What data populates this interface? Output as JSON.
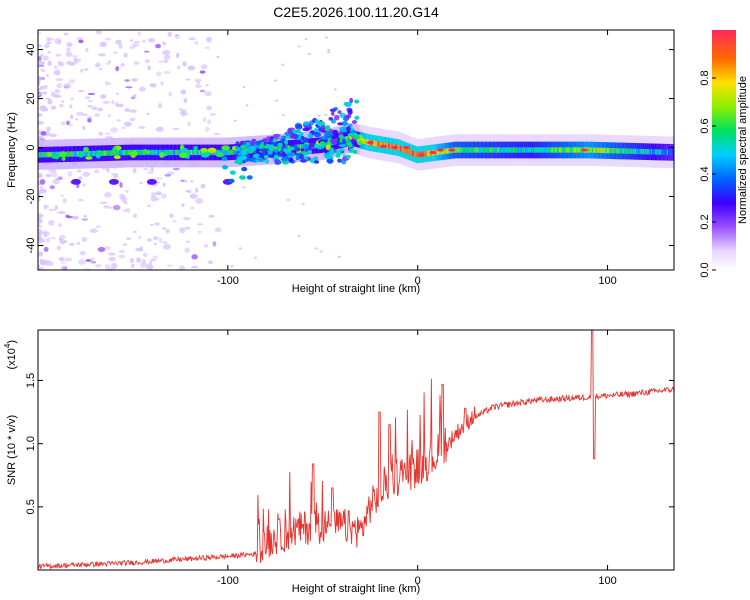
{
  "title": "C2E5.2026.100.11.20.G14",
  "colors": {
    "snr_line": "#e8332e",
    "spectrogram_background": "#ffffff"
  },
  "chart_data": [
    {
      "type": "heatmap",
      "xlabel": "Height of straight line (km)",
      "ylabel": "Frequency (Hz)",
      "xlim": [
        -200,
        135
      ],
      "ylim": [
        -50,
        48
      ],
      "xticks": [
        -100,
        0,
        100
      ],
      "xtick_labels": [
        "-100",
        "0",
        "100"
      ],
      "yticks": [
        40,
        20,
        0,
        -20,
        -40
      ],
      "ytick_labels": [
        "40",
        "20",
        "0",
        "-20",
        "-40"
      ],
      "colorbar": {
        "label": "Normalized spectral amplitude",
        "range": [
          0,
          1
        ],
        "ticks": [
          0.0,
          0.2,
          0.4,
          0.6,
          0.8
        ],
        "tick_labels": [
          "0.0",
          "0.2",
          "0.4",
          "0.6",
          "0.8"
        ]
      },
      "ridge": {
        "description_points": [
          {
            "x": -200,
            "y": -3,
            "amp": 0.3
          },
          {
            "x": -150,
            "y": -2,
            "amp": 0.35
          },
          {
            "x": -100,
            "y": -2,
            "amp": 0.4
          },
          {
            "x": -80,
            "y": -1,
            "amp": 0.45
          },
          {
            "x": -50,
            "y": 1,
            "amp": 0.4
          },
          {
            "x": -35,
            "y": 4,
            "amp": 0.6
          },
          {
            "x": -25,
            "y": 2,
            "amp": 0.85
          },
          {
            "x": -10,
            "y": 0,
            "amp": 0.9
          },
          {
            "x": 0,
            "y": -3,
            "amp": 0.95
          },
          {
            "x": 20,
            "y": -1,
            "amp": 0.6
          },
          {
            "x": 60,
            "y": -1,
            "amp": 0.5
          },
          {
            "x": 90,
            "y": -1,
            "amp": 0.7
          },
          {
            "x": 135,
            "y": -2,
            "amp": 0.4
          }
        ],
        "branch": [
          {
            "x": -90,
            "y": 0
          },
          {
            "x": -60,
            "y": 8
          },
          {
            "x": -40,
            "y": 15
          },
          {
            "x": -32,
            "y": 22
          }
        ],
        "secondary": [
          {
            "x": -100,
            "y": -14
          },
          {
            "x": -140,
            "y": -14
          },
          {
            "x": -180,
            "y": -14
          },
          {
            "x": -160,
            "y": -14
          }
        ]
      }
    },
    {
      "type": "line",
      "xlabel": "Height of straight line (km)",
      "ylabel": "SNR (10 * v/v)",
      "y_multiplier_label": "(x10",
      "y_multiplier_exp": "4",
      "y_multiplier_close": ")",
      "xlim": [
        -200,
        135
      ],
      "ylim": [
        0,
        1.9
      ],
      "xticks": [
        -100,
        0,
        100
      ],
      "xtick_labels": [
        "-100",
        "0",
        "100"
      ],
      "yticks": [
        0.5,
        1.0,
        1.5
      ],
      "ytick_labels": [
        "0.5",
        "1.0",
        "1.5"
      ],
      "series": [
        {
          "name": "SNR",
          "baseline": [
            {
              "x": -200,
              "y": 0.02
            },
            {
              "x": -150,
              "y": 0.05
            },
            {
              "x": -100,
              "y": 0.1
            },
            {
              "x": -85,
              "y": 0.12
            },
            {
              "x": -75,
              "y": 0.2
            },
            {
              "x": -60,
              "y": 0.28
            },
            {
              "x": -40,
              "y": 0.3
            },
            {
              "x": -30,
              "y": 0.25
            },
            {
              "x": -25,
              "y": 0.45
            },
            {
              "x": -15,
              "y": 0.65
            },
            {
              "x": 0,
              "y": 0.75
            },
            {
              "x": 10,
              "y": 0.85
            },
            {
              "x": 20,
              "y": 1.05
            },
            {
              "x": 30,
              "y": 1.2
            },
            {
              "x": 40,
              "y": 1.28
            },
            {
              "x": 60,
              "y": 1.33
            },
            {
              "x": 90,
              "y": 1.36
            },
            {
              "x": 110,
              "y": 1.38
            },
            {
              "x": 135,
              "y": 1.42
            }
          ],
          "spikes": [
            {
              "x": -55,
              "y": 0.84
            },
            {
              "x": -45,
              "y": 0.65
            },
            {
              "x": -20,
              "y": 1.25
            },
            {
              "x": -15,
              "y": 1.15
            },
            {
              "x": 13,
              "y": 1.47
            },
            {
              "x": 25,
              "y": 1.28
            },
            {
              "x": 92,
              "y": 1.9
            },
            {
              "x": 93,
              "y": 0.88
            }
          ]
        }
      ]
    }
  ]
}
